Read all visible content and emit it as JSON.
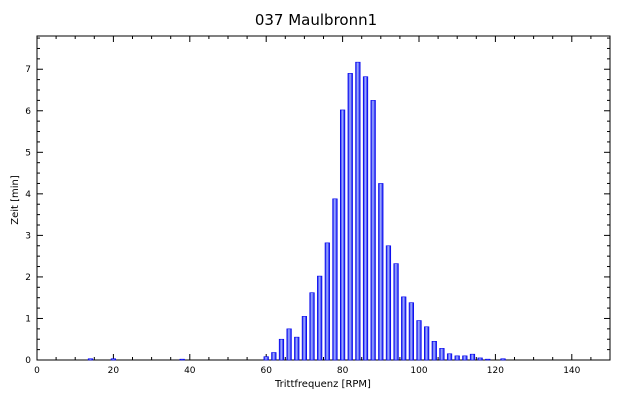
{
  "chart_data": {
    "type": "bar",
    "title": "037 Maulbronn1",
    "xlabel": "Trittfrequenz [RPM]",
    "ylabel": "Zeit [min]",
    "xlim": [
      0,
      150
    ],
    "ylim": [
      0,
      7.8
    ],
    "xticks": [
      0,
      20,
      40,
      60,
      80,
      100,
      120,
      140
    ],
    "yticks": [
      0,
      1,
      2,
      3,
      4,
      5,
      6,
      7
    ],
    "grid": false,
    "bar_color": "#0000ee",
    "bar_highlight": "#a8b8ff",
    "x": [
      14,
      20,
      38,
      60,
      62,
      64,
      66,
      68,
      70,
      72,
      74,
      76,
      78,
      80,
      82,
      84,
      86,
      88,
      90,
      92,
      94,
      96,
      98,
      100,
      102,
      104,
      106,
      108,
      110,
      112,
      114,
      116,
      118,
      122
    ],
    "values": [
      0.03,
      0.03,
      0.02,
      0.08,
      0.18,
      0.5,
      0.75,
      0.55,
      1.05,
      1.62,
      2.02,
      2.82,
      3.88,
      6.02,
      6.9,
      7.17,
      6.82,
      6.25,
      4.25,
      2.75,
      2.32,
      1.52,
      1.38,
      0.95,
      0.8,
      0.45,
      0.28,
      0.15,
      0.1,
      0.1,
      0.14,
      0.05,
      0.02,
      0.03
    ]
  }
}
